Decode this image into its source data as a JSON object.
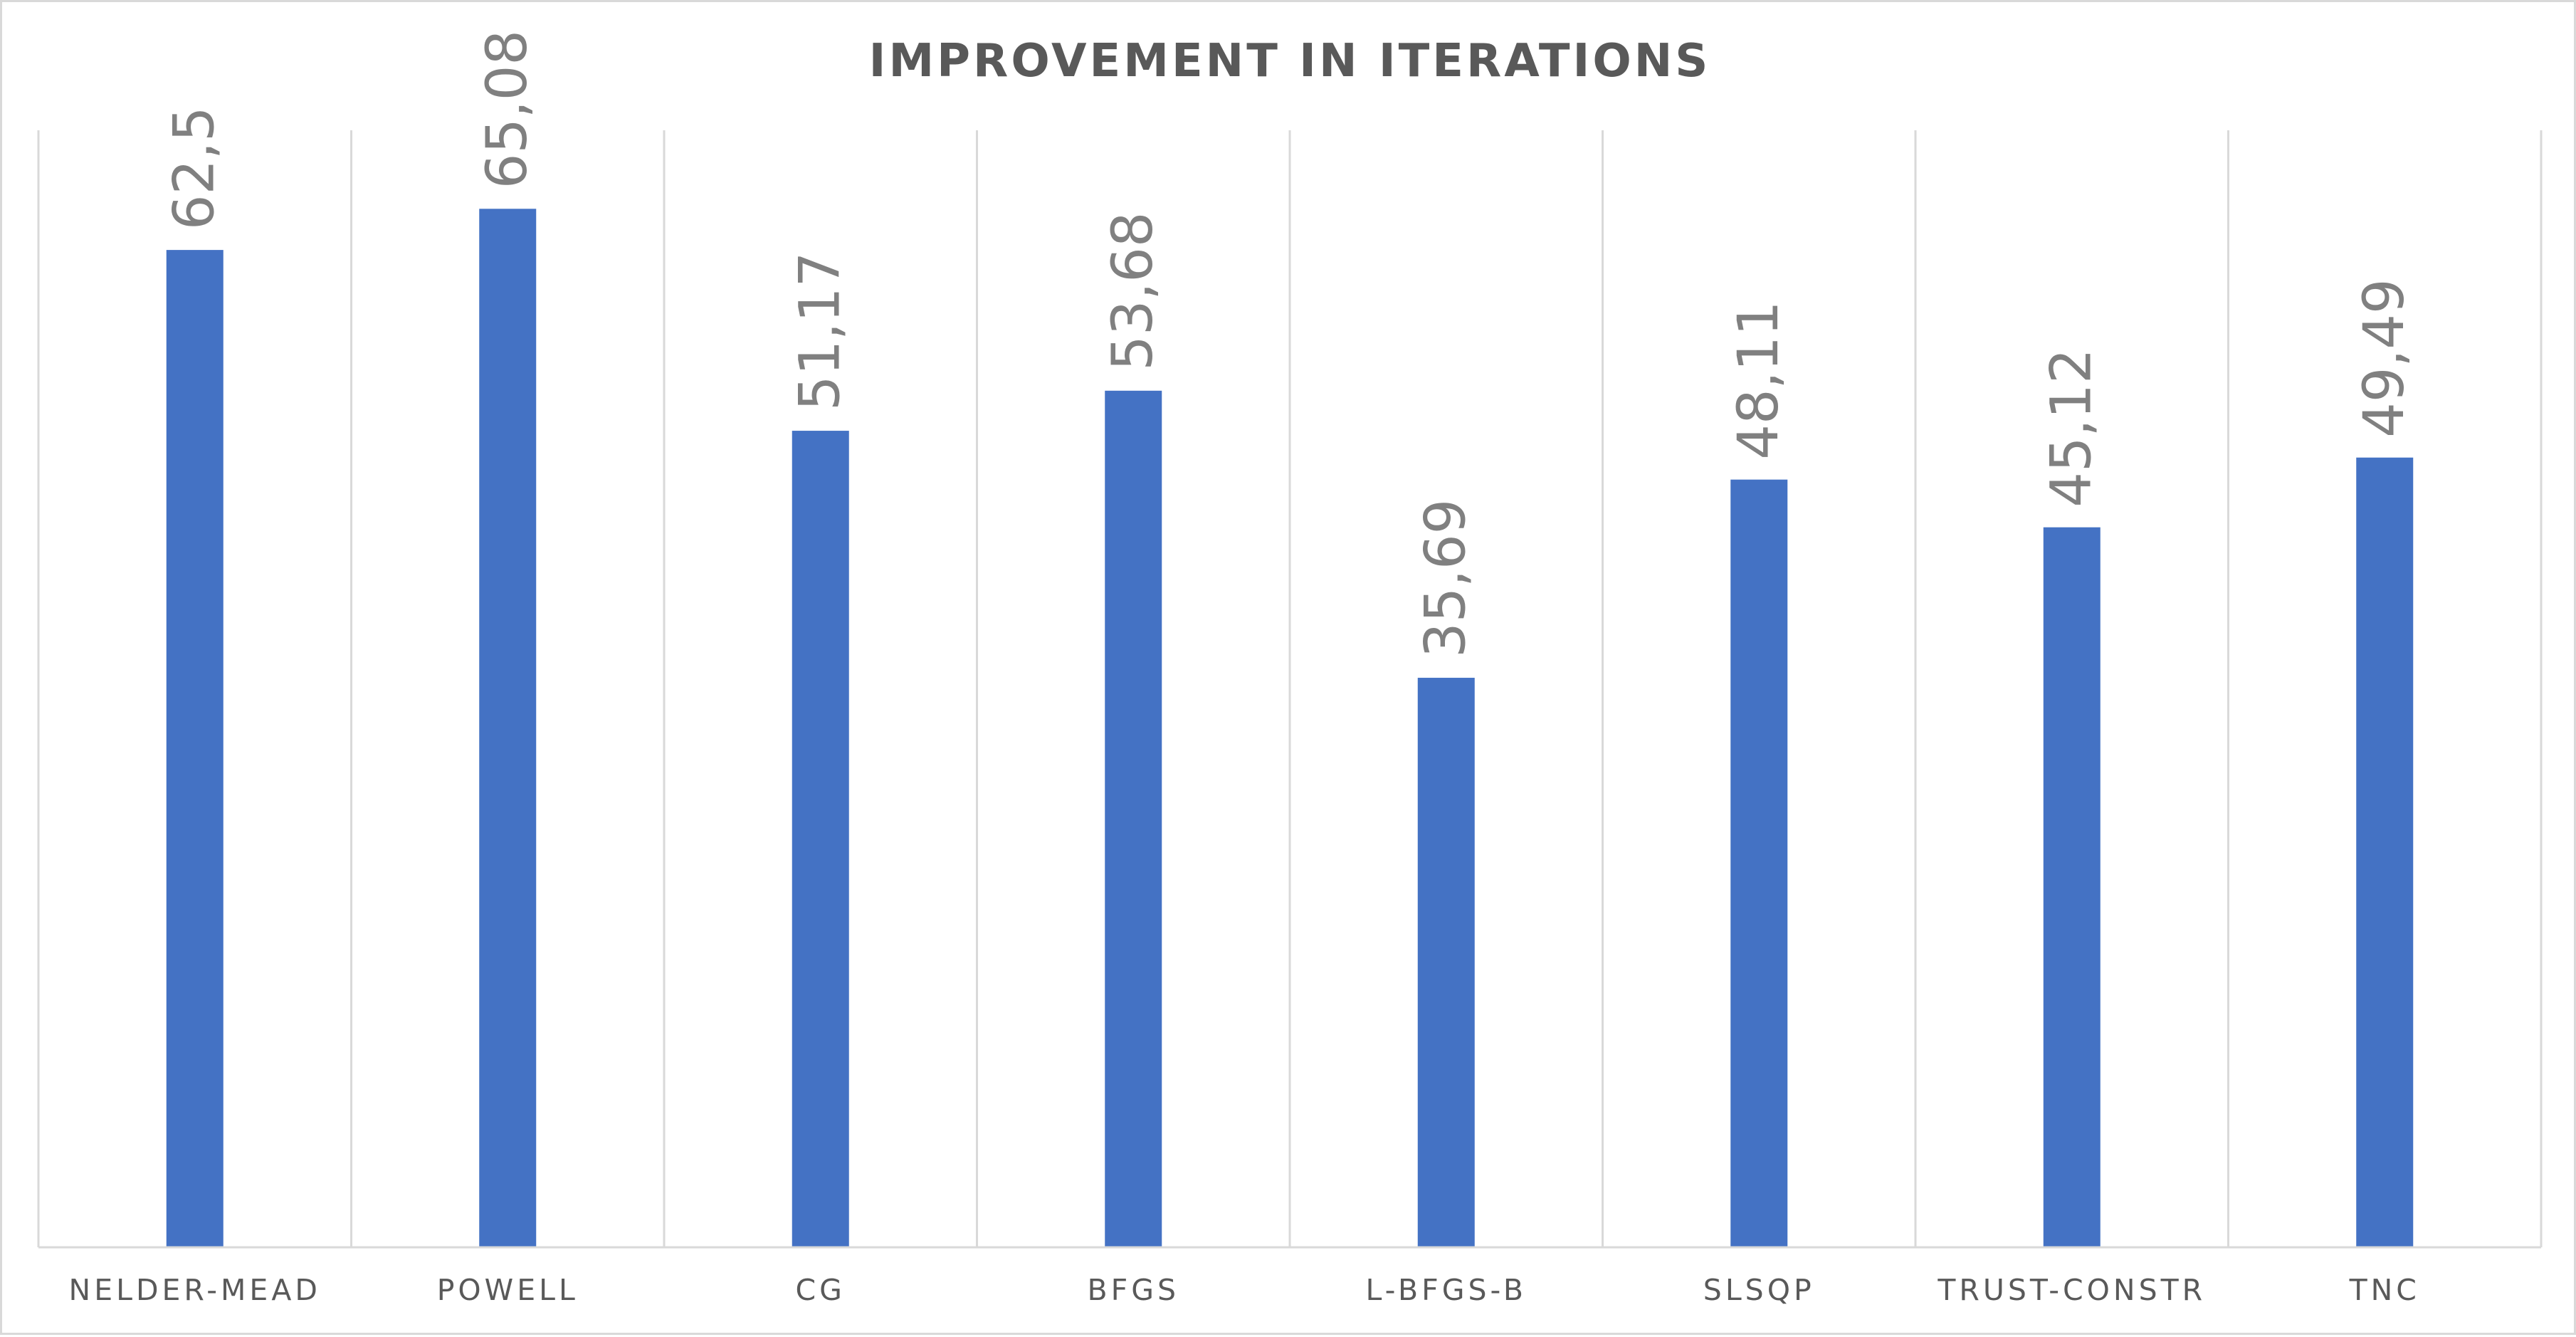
{
  "chart_data": {
    "type": "bar",
    "title": "IMPROVEMENT IN ITERATIONS",
    "xlabel": "",
    "ylabel": "",
    "categories": [
      "NELDER-MEAD",
      "POWELL",
      "CG",
      "BFGS",
      "L-BFGS-B",
      "SLSQP",
      "TRUST-CONSTR",
      "TNC"
    ],
    "values": [
      62.5,
      65.08,
      51.17,
      53.68,
      35.69,
      48.11,
      45.12,
      49.49
    ],
    "data_labels": [
      "62,5",
      "65,08",
      "51,17",
      "53,68",
      "35,69",
      "48,11",
      "45,12",
      "49,49"
    ],
    "ylim": [
      0,
      70
    ],
    "grid": "vertical category separators",
    "legend": "none",
    "bar_color": "#4472C4",
    "data_label_color": "#808080",
    "title_color": "#595959"
  }
}
